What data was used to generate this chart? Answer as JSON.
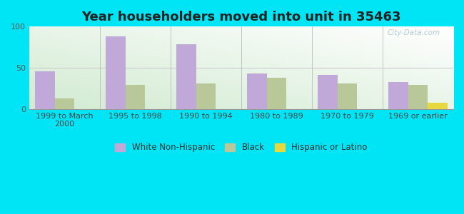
{
  "title": "Year householders moved into unit in 35463",
  "categories": [
    "1999 to March\n2000",
    "1995 to 1998",
    "1990 to 1994",
    "1980 to 1989",
    "1970 to 1979",
    "1969 or earlier"
  ],
  "white_non_hispanic": [
    46,
    88,
    79,
    43,
    41,
    33
  ],
  "black": [
    13,
    29,
    31,
    38,
    31,
    29
  ],
  "hispanic_or_latino": [
    0,
    0,
    0,
    0,
    0,
    8
  ],
  "white_color": "#c0a8d8",
  "black_color": "#b8c898",
  "hispanic_color": "#e8d840",
  "background_outer": "#00e5f5",
  "ylim": [
    0,
    100
  ],
  "yticks": [
    0,
    50,
    100
  ],
  "title_fontsize": 13,
  "tick_fontsize": 8,
  "legend_fontsize": 8.5,
  "bar_width": 0.28
}
